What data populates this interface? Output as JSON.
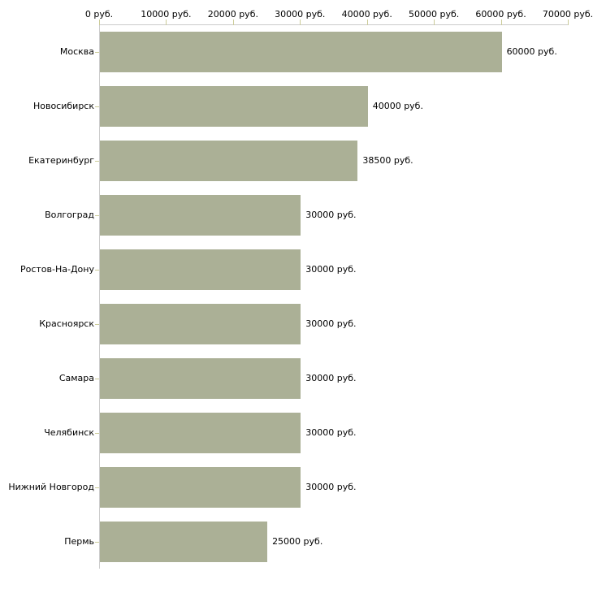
{
  "chart_data": {
    "type": "bar",
    "orientation": "horizontal",
    "title": "",
    "xlabel": "",
    "ylabel": "",
    "grid": false,
    "legend": false,
    "categories": [
      "Москва",
      "Новосибирск",
      "Екатеринбург",
      "Волгоград",
      "Ростов-На-Дону",
      "Красноярск",
      "Самара",
      "Челябинск",
      "Нижний Новгород",
      "Пермь"
    ],
    "values": [
      60000,
      40000,
      38500,
      30000,
      30000,
      30000,
      30000,
      30000,
      30000,
      25000
    ],
    "value_labels": [
      "60000 руб.",
      "40000 руб.",
      "38500 руб.",
      "30000 руб.",
      "30000 руб.",
      "30000 руб.",
      "30000 руб.",
      "30000 руб.",
      "30000 руб.",
      "25000 руб."
    ],
    "x_axis": {
      "position": "top",
      "range": [
        0,
        70000
      ],
      "ticks": [
        0,
        10000,
        20000,
        30000,
        40000,
        50000,
        60000,
        70000
      ],
      "tick_labels": [
        "0 руб.",
        "10000 руб.",
        "20000 руб.",
        "30000 руб.",
        "40000 руб.",
        "50000 руб.",
        "60000 руб.",
        "70000 руб."
      ]
    },
    "colors": {
      "bar_fill": "#abb096",
      "axis_line": "#cccccc",
      "tick_mark": "#cccc99",
      "text": "#000000",
      "background": "#ffffff"
    }
  }
}
